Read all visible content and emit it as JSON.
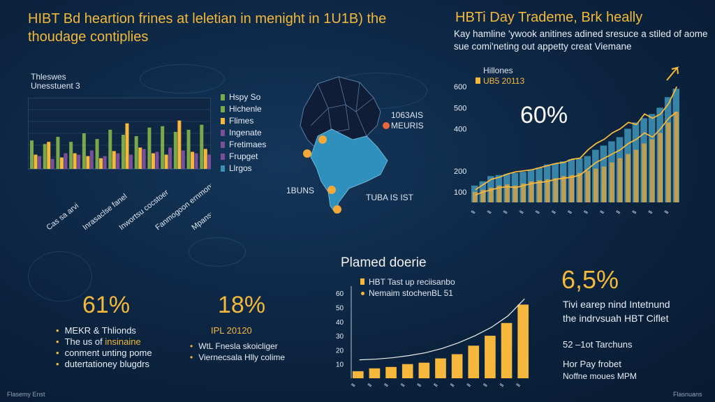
{
  "header": {
    "title": "HIBT Bd heartion frines at leletian in menight in 1U1B) the thoudage contiplies",
    "right_title": "HBTi Day Trademe, Brk heally",
    "right_subtitle": "Kay hamline 'ywook anitines adined sresuce a stiled of aome sue comi'neting out appetty creat Viemane"
  },
  "left_chart": {
    "label_line1": "Thleswes",
    "label_line2": "Unesstuent 3",
    "x_labels": [
      "Cas sa arvi",
      "Inrasaclse fanel",
      "Inwortsu cocstoer",
      "Fanmogoon ernmons",
      "Mpanssnb sinbuzat"
    ]
  },
  "left_legend": [
    "Hspy So",
    "Hichenle",
    "Flimes",
    "Ingenate",
    "Fretimaes",
    "Frupget",
    "Llrgos"
  ],
  "map": {
    "label_tr1": "1063AIS",
    "label_tr2": "MEURIS",
    "label_bl": "1BUNS",
    "label_br": "TUBA IS IST",
    "colors": {
      "land": "#0f1e36",
      "highlight": "#2f8fbd",
      "marker": "#f3a83a"
    }
  },
  "right_chart": {
    "legend_title": "Hillones",
    "legend_series": "UB5 20113",
    "big_percent": "60%"
  },
  "bottom_chart": {
    "title": "Plamed doerie",
    "legend_1": "HBT Tast up reciisanbo",
    "legend_2": "Nemaim stochenBL 51"
  },
  "stat_left": {
    "value": "61%",
    "bullets": [
      "MEKR & Thlionds",
      "The us of <em>insinaine</em>",
      "conment unting pome",
      "dutertationey blugdrs"
    ]
  },
  "stat_mid": {
    "value": "18%",
    "year": "IPL 20120",
    "bullets": [
      "WtL Fnesla skoicliger",
      "Viernecsala Hlly colime"
    ]
  },
  "stat_right": {
    "value": "6,5%",
    "line1": "Tivi earep nind Intetnund",
    "line2": "the indrvsuah HBT Ciflet",
    "line3": "52 –1ot Tarchuns",
    "line4": "Hor Pay frobet",
    "line5": "Noffne moues MPM"
  },
  "footer": {
    "left": "Flasemy Enst",
    "right": "Flasnuans"
  },
  "chart_data": [
    {
      "type": "bar",
      "categories": [
        "1",
        "2",
        "3",
        "4",
        "5",
        "6",
        "7",
        "8",
        "9",
        "10",
        "11",
        "12",
        "13",
        "14"
      ],
      "series": [
        {
          "values": [
            40,
            35,
            45,
            38,
            50,
            42,
            55,
            48,
            46,
            58,
            60,
            52,
            55,
            62
          ]
        },
        {
          "values": [
            20,
            38,
            16,
            22,
            18,
            15,
            25,
            64,
            30,
            22,
            20,
            68,
            24,
            28
          ]
        },
        {
          "values": [
            18,
            14,
            22,
            20,
            26,
            18,
            22,
            20,
            28,
            24,
            30,
            26,
            22,
            20
          ]
        }
      ],
      "colors": [
        "#7aa84a",
        "#f5b83c",
        "#7a4f9a"
      ]
    },
    {
      "type": "bar",
      "categories": [
        "1",
        "2",
        "3",
        "4",
        "5",
        "6",
        "7",
        "8",
        "9",
        "10",
        "11",
        "12",
        "13",
        "14",
        "15",
        "16",
        "17",
        "18",
        "19",
        "20",
        "21",
        "22",
        "23",
        "24",
        "25",
        "26"
      ],
      "legend": [
        "Hillones",
        "UB5 20113"
      ],
      "y_tick_labels": [
        "100",
        "200",
        "",
        "400",
        "500",
        "600"
      ],
      "ylim": [
        50,
        680
      ],
      "series": [
        {
          "values": [
            130,
            150,
            175,
            180,
            185,
            190,
            195,
            205,
            215,
            230,
            235,
            245,
            255,
            260,
            270,
            300,
            320,
            340,
            360,
            400,
            430,
            450,
            470,
            500,
            550,
            590
          ]
        },
        {
          "values": [
            100,
            110,
            120,
            130,
            135,
            130,
            140,
            150,
            155,
            160,
            165,
            175,
            180,
            190,
            200,
            210,
            220,
            240,
            260,
            280,
            300,
            330,
            350,
            380,
            430,
            480
          ]
        }
      ],
      "lines": [
        {
          "values": [
            110,
            135,
            160,
            170,
            185,
            195,
            200,
            205,
            215,
            225,
            235,
            240,
            255,
            260,
            300,
            330,
            350,
            380,
            400,
            430,
            420,
            470,
            450,
            470,
            520,
            600
          ]
        },
        {
          "values": [
            85,
            100,
            110,
            120,
            125,
            120,
            130,
            140,
            145,
            150,
            160,
            165,
            170,
            180,
            210,
            240,
            260,
            280,
            300,
            330,
            350,
            380,
            360,
            400,
            450,
            480
          ]
        }
      ],
      "colors": [
        "#3d8fb3",
        "#e8a83a"
      ]
    },
    {
      "type": "bar",
      "categories": [
        "1",
        "2",
        "3",
        "4",
        "5",
        "6",
        "7",
        "8",
        "9",
        "10",
        "11"
      ],
      "y_tick_labels": [
        "10",
        "20",
        "30",
        "40",
        "50",
        "60"
      ],
      "ylim": [
        0,
        65
      ],
      "values": [
        5,
        7,
        8,
        10,
        11,
        14,
        17,
        23,
        30,
        39,
        52
      ],
      "line_values": [
        13,
        13.5,
        14.5,
        16,
        18,
        21,
        25,
        30,
        36,
        44,
        56
      ],
      "colors": [
        "#f5b83c",
        "#f0f0f0"
      ]
    }
  ]
}
